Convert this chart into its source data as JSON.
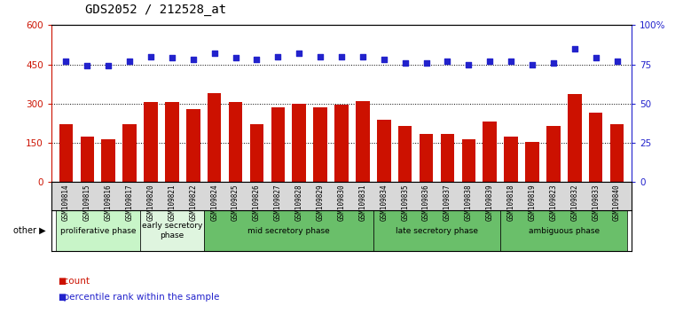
{
  "title": "GDS2052 / 212528_at",
  "samples": [
    "GSM109814",
    "GSM109815",
    "GSM109816",
    "GSM109817",
    "GSM109820",
    "GSM109821",
    "GSM109822",
    "GSM109824",
    "GSM109825",
    "GSM109826",
    "GSM109827",
    "GSM109828",
    "GSM109829",
    "GSM109830",
    "GSM109831",
    "GSM109834",
    "GSM109835",
    "GSM109836",
    "GSM109837",
    "GSM109838",
    "GSM109839",
    "GSM109818",
    "GSM109819",
    "GSM109823",
    "GSM109832",
    "GSM109833",
    "GSM109840"
  ],
  "counts": [
    220,
    175,
    165,
    220,
    305,
    305,
    280,
    340,
    305,
    220,
    285,
    300,
    285,
    295,
    310,
    240,
    215,
    185,
    185,
    165,
    230,
    175,
    155,
    215,
    335,
    265,
    220
  ],
  "percentiles": [
    77,
    74,
    74,
    77,
    80,
    79,
    78,
    82,
    79,
    78,
    80,
    82,
    80,
    80,
    80,
    78,
    76,
    76,
    77,
    75,
    77,
    77,
    75,
    76,
    85,
    79,
    77
  ],
  "phases": [
    {
      "label": "proliferative phase",
      "start": 0,
      "end": 4
    },
    {
      "label": "early secretory\nphase",
      "start": 4,
      "end": 7
    },
    {
      "label": "mid secretory phase",
      "start": 7,
      "end": 15
    },
    {
      "label": "late secretory phase",
      "start": 15,
      "end": 21
    },
    {
      "label": "ambiguous phase",
      "start": 21,
      "end": 27
    }
  ],
  "phase_colors": [
    "#c8f5c8",
    "#dff5df",
    "#6abf6a",
    "#6abf6a",
    "#6abf6a"
  ],
  "bar_color": "#cc1100",
  "dot_color": "#2222cc",
  "ylim_left": [
    0,
    600
  ],
  "ylim_right": [
    0,
    100
  ],
  "yticks_left": [
    0,
    150,
    300,
    450,
    600
  ],
  "yticks_right": [
    0,
    25,
    50,
    75,
    100
  ],
  "grid_lines": [
    150,
    300,
    450
  ],
  "title_fontsize": 10,
  "axis_color_left": "#cc1100",
  "axis_color_right": "#2222cc",
  "tick_bg_color": "#d8d8d8"
}
